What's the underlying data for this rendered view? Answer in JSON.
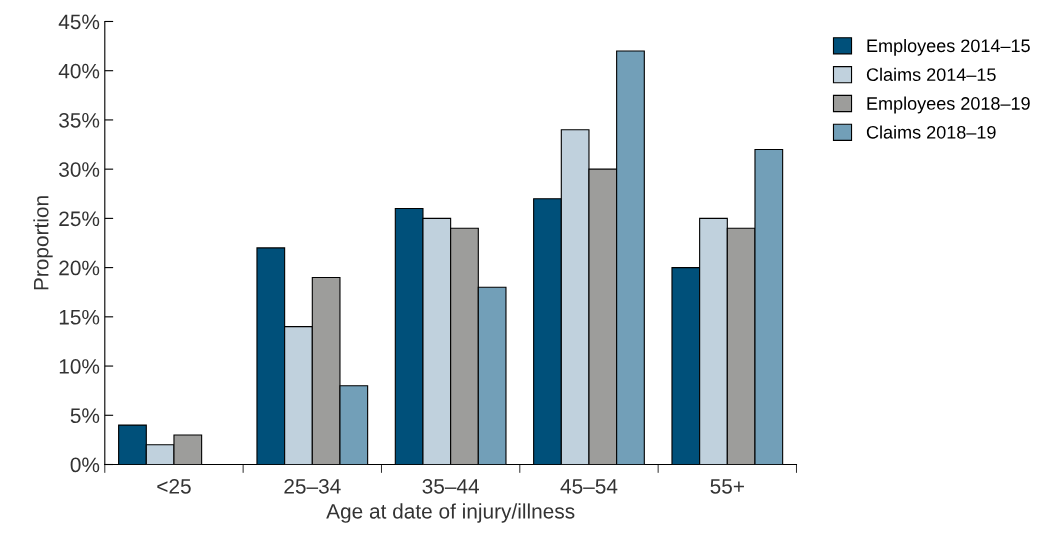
{
  "chart_data": {
    "type": "bar",
    "xlabel": "Age at date of injury/illness",
    "ylabel": "Proportion",
    "categories": [
      "<25",
      "25–34",
      "35–44",
      "45–54",
      "55+"
    ],
    "series": [
      {
        "name": "Employees 2014–15",
        "color": "#00507a",
        "values": [
          4,
          22,
          26,
          27,
          20
        ]
      },
      {
        "name": "Claims 2014–15",
        "color": "#c0d1dd",
        "values": [
          2,
          14,
          25,
          34,
          25
        ]
      },
      {
        "name": "Employees 2018–19",
        "color": "#9d9d9b",
        "values": [
          3,
          19,
          24,
          30,
          24
        ]
      },
      {
        "name": "Claims 2018–19",
        "color": "#729fb8",
        "values": [
          null,
          8,
          18,
          42,
          32
        ]
      }
    ],
    "ylim": [
      0,
      45
    ],
    "yticks": [
      {
        "value": 0,
        "label": "0%"
      },
      {
        "value": 5,
        "label": "5%"
      },
      {
        "value": 10,
        "label": "10%"
      },
      {
        "value": 15,
        "label": "15%"
      },
      {
        "value": 20,
        "label": "20%"
      },
      {
        "value": 25,
        "label": "25%"
      },
      {
        "value": 30,
        "label": "30%"
      },
      {
        "value": 35,
        "label": "35%"
      },
      {
        "value": 40,
        "label": "40%"
      },
      {
        "value": 45,
        "label": "45%"
      }
    ],
    "grid": false,
    "legend": "top right"
  }
}
